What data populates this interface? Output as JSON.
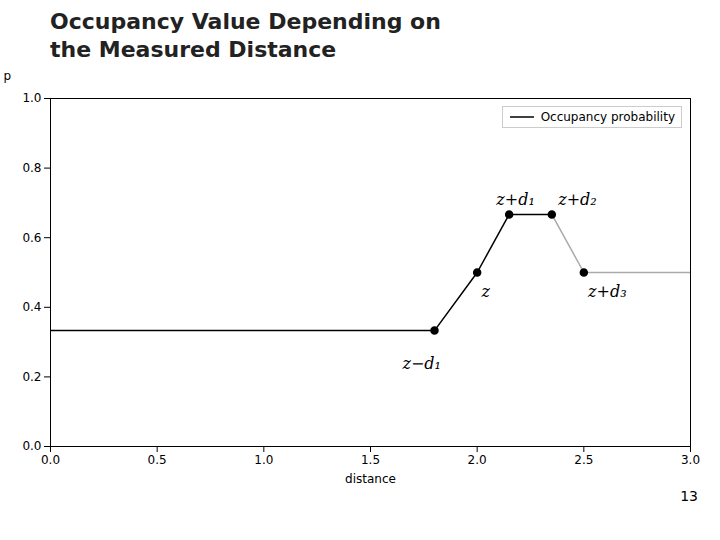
{
  "chart_data": {
    "type": "line",
    "title": "Occupancy Value Depending on\nthe Measured Distance",
    "xlabel": "distance",
    "ylabel": "p",
    "xlim": [
      0,
      3
    ],
    "ylim": [
      0,
      1
    ],
    "xticks": [
      {
        "value": 0,
        "label": "0.0"
      },
      {
        "value": 0.5,
        "label": "0.5"
      },
      {
        "value": 1,
        "label": "1.0"
      },
      {
        "value": 1.5,
        "label": "1.5"
      },
      {
        "value": 2,
        "label": "2.0"
      },
      {
        "value": 2.5,
        "label": "2.5"
      },
      {
        "value": 3,
        "label": "3.0"
      }
    ],
    "yticks": [
      {
        "value": 0,
        "label": "0.0"
      },
      {
        "value": 0.2,
        "label": "0.2"
      },
      {
        "value": 0.4,
        "label": "0.4"
      },
      {
        "value": 0.6,
        "label": "0.6"
      },
      {
        "value": 0.8,
        "label": "0.8"
      },
      {
        "value": 1,
        "label": "1.0"
      }
    ],
    "grid": false,
    "legend": "upper right",
    "series": [
      {
        "name": "Occupancy probability",
        "type": "line",
        "color": "black",
        "x": [
          0,
          1.8,
          2.0,
          2.15,
          2.35
        ],
        "values": [
          0.333,
          0.333,
          0.5,
          0.667,
          0.667
        ]
      },
      {
        "type": "line",
        "color": "#aaaaaa",
        "x": [
          2.35,
          2.5,
          3.0
        ],
        "values": [
          0.667,
          0.5,
          0.5
        ]
      },
      {
        "type": "scatter",
        "color": "black",
        "marker": "circle",
        "x": [
          1.8,
          2.0,
          2.15,
          2.35,
          2.5
        ],
        "values": [
          0.333,
          0.5,
          0.667,
          0.667,
          0.5
        ]
      }
    ],
    "annotations": [
      {
        "text": "z−d₁",
        "x": 1.74,
        "y": 0.255
      },
      {
        "text": "z",
        "x": 2.02,
        "y": 0.43
      },
      {
        "text": "z+d₁",
        "x": 2.09,
        "y": 0.695
      },
      {
        "text": "z+d₂",
        "x": 2.38,
        "y": 0.695
      },
      {
        "text": "z+d₃",
        "x": 2.52,
        "y": 0.43
      }
    ],
    "page_number": "13"
  }
}
